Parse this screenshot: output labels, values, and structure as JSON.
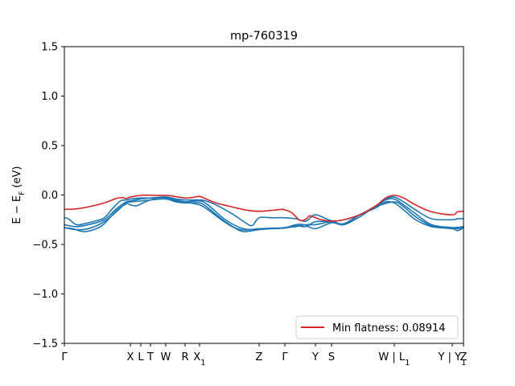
{
  "chart_data": {
    "type": "line",
    "title": "mp-760319",
    "ylabel": "E − E_F (eV)",
    "ylim": [
      -1.5,
      1.5
    ],
    "xlim": [
      0,
      1
    ],
    "yticks": [
      1.5,
      1.0,
      0.5,
      0.0,
      -0.5,
      -1.0,
      -1.5
    ],
    "ytick_labels": [
      "1.5",
      "1.0",
      "0.5",
      "0.0",
      "−0.5",
      "−1.0",
      "−1.5"
    ],
    "xticks": [
      {
        "x": 0.0,
        "label": "Γ"
      },
      {
        "x": 0.1653,
        "label": "X"
      },
      {
        "x": 0.1915,
        "label": "L"
      },
      {
        "x": 0.2157,
        "label": "T"
      },
      {
        "x": 0.254,
        "label": "W"
      },
      {
        "x": 0.3024,
        "label": "R"
      },
      {
        "x": 0.3387,
        "label": "X_1"
      },
      {
        "x": 0.4879,
        "label": "Z"
      },
      {
        "x": 0.5524,
        "label": "Γ"
      },
      {
        "x": 0.629,
        "label": "Y"
      },
      {
        "x": 0.6694,
        "label": "S"
      },
      {
        "x": 0.8266,
        "label": "W | L_1"
      },
      {
        "x": 0.9718,
        "label": "Y | Y_1"
      },
      {
        "x": 1.0,
        "label": "Z"
      }
    ],
    "legend": {
      "label": "Min flatness: 0.08914",
      "position": "lower right"
    },
    "series": [
      {
        "color": "#d62728",
        "points": [
          [
            0.0,
            -0.145
          ],
          [
            0.03,
            -0.14
          ],
          [
            0.06,
            -0.12
          ],
          [
            0.1,
            -0.08
          ],
          [
            0.13,
            -0.035
          ],
          [
            0.145,
            -0.025
          ],
          [
            0.155,
            -0.035
          ],
          [
            0.1653,
            -0.02
          ],
          [
            0.18,
            -0.01
          ],
          [
            0.1915,
            -0.003
          ],
          [
            0.2157,
            -0.002
          ],
          [
            0.235,
            -0.005
          ],
          [
            0.254,
            -0.003
          ],
          [
            0.27,
            -0.01
          ],
          [
            0.3024,
            -0.03
          ],
          [
            0.32,
            -0.025
          ],
          [
            0.3387,
            -0.015
          ],
          [
            0.355,
            -0.04
          ],
          [
            0.38,
            -0.08
          ],
          [
            0.42,
            -0.12
          ],
          [
            0.46,
            -0.155
          ],
          [
            0.4879,
            -0.165
          ],
          [
            0.52,
            -0.155
          ],
          [
            0.545,
            -0.145
          ],
          [
            0.5524,
            -0.15
          ],
          [
            0.57,
            -0.18
          ],
          [
            0.59,
            -0.255
          ],
          [
            0.605,
            -0.245
          ],
          [
            0.615,
            -0.21
          ],
          [
            0.629,
            -0.23
          ],
          [
            0.645,
            -0.25
          ],
          [
            0.6694,
            -0.265
          ],
          [
            0.7,
            -0.25
          ],
          [
            0.74,
            -0.2
          ],
          [
            0.78,
            -0.11
          ],
          [
            0.805,
            -0.03
          ],
          [
            0.8266,
            -0.003
          ],
          [
            0.85,
            -0.03
          ],
          [
            0.88,
            -0.1
          ],
          [
            0.92,
            -0.17
          ],
          [
            0.9718,
            -0.2
          ],
          [
            0.985,
            -0.17
          ],
          [
            1.0,
            -0.165
          ]
        ]
      },
      {
        "color": "#1f77b4",
        "points": [
          [
            0.0,
            -0.23
          ],
          [
            0.01,
            -0.24
          ],
          [
            0.03,
            -0.3
          ],
          [
            0.05,
            -0.29
          ],
          [
            0.08,
            -0.26
          ],
          [
            0.1,
            -0.23
          ],
          [
            0.12,
            -0.14
          ],
          [
            0.14,
            -0.06
          ],
          [
            0.155,
            -0.05
          ],
          [
            0.1653,
            -0.04
          ],
          [
            0.1915,
            -0.03
          ],
          [
            0.2157,
            -0.03
          ],
          [
            0.254,
            -0.02
          ],
          [
            0.28,
            -0.04
          ],
          [
            0.3024,
            -0.05
          ],
          [
            0.3387,
            -0.05
          ],
          [
            0.355,
            -0.06
          ],
          [
            0.38,
            -0.1
          ],
          [
            0.42,
            -0.19
          ],
          [
            0.45,
            -0.27
          ],
          [
            0.47,
            -0.31
          ],
          [
            0.4879,
            -0.23
          ],
          [
            0.52,
            -0.23
          ],
          [
            0.5524,
            -0.23
          ],
          [
            0.58,
            -0.24
          ],
          [
            0.605,
            -0.265
          ],
          [
            0.629,
            -0.2
          ],
          [
            0.6694,
            -0.26
          ],
          [
            0.7,
            -0.25
          ],
          [
            0.74,
            -0.2
          ],
          [
            0.78,
            -0.11
          ],
          [
            0.805,
            -0.04
          ],
          [
            0.8266,
            -0.02
          ],
          [
            0.85,
            -0.07
          ],
          [
            0.88,
            -0.15
          ],
          [
            0.92,
            -0.24
          ],
          [
            0.9718,
            -0.25
          ],
          [
            0.985,
            -0.24
          ],
          [
            1.0,
            -0.24
          ]
        ]
      },
      {
        "color": "#1f77b4",
        "points": [
          [
            0.0,
            -0.3
          ],
          [
            0.03,
            -0.32
          ],
          [
            0.06,
            -0.3
          ],
          [
            0.1,
            -0.25
          ],
          [
            0.13,
            -0.14
          ],
          [
            0.155,
            -0.07
          ],
          [
            0.1653,
            -0.06
          ],
          [
            0.1915,
            -0.04
          ],
          [
            0.2157,
            -0.03
          ],
          [
            0.254,
            -0.03
          ],
          [
            0.28,
            -0.06
          ],
          [
            0.3024,
            -0.07
          ],
          [
            0.3387,
            -0.06
          ],
          [
            0.36,
            -0.1
          ],
          [
            0.4,
            -0.24
          ],
          [
            0.44,
            -0.33
          ],
          [
            0.47,
            -0.35
          ],
          [
            0.4879,
            -0.34
          ],
          [
            0.52,
            -0.335
          ],
          [
            0.5524,
            -0.33
          ],
          [
            0.58,
            -0.3
          ],
          [
            0.6,
            -0.3
          ],
          [
            0.629,
            -0.34
          ],
          [
            0.6694,
            -0.28
          ],
          [
            0.7,
            -0.3
          ],
          [
            0.74,
            -0.2
          ],
          [
            0.78,
            -0.12
          ],
          [
            0.805,
            -0.05
          ],
          [
            0.8266,
            -0.04
          ],
          [
            0.85,
            -0.1
          ],
          [
            0.88,
            -0.19
          ],
          [
            0.92,
            -0.3
          ],
          [
            0.9718,
            -0.33
          ],
          [
            0.985,
            -0.34
          ],
          [
            1.0,
            -0.33
          ]
        ]
      },
      {
        "color": "#1f77b4",
        "points": [
          [
            0.0,
            -0.33
          ],
          [
            0.02,
            -0.34
          ],
          [
            0.05,
            -0.37
          ],
          [
            0.08,
            -0.34
          ],
          [
            0.1,
            -0.29
          ],
          [
            0.13,
            -0.16
          ],
          [
            0.155,
            -0.09
          ],
          [
            0.1653,
            -0.1
          ],
          [
            0.18,
            -0.11
          ],
          [
            0.1915,
            -0.09
          ],
          [
            0.2157,
            -0.05
          ],
          [
            0.254,
            -0.02
          ],
          [
            0.28,
            -0.05
          ],
          [
            0.3024,
            -0.07
          ],
          [
            0.3387,
            -0.1
          ],
          [
            0.36,
            -0.15
          ],
          [
            0.4,
            -0.27
          ],
          [
            0.43,
            -0.34
          ],
          [
            0.45,
            -0.37
          ],
          [
            0.4879,
            -0.35
          ],
          [
            0.52,
            -0.34
          ],
          [
            0.5524,
            -0.335
          ],
          [
            0.58,
            -0.31
          ],
          [
            0.605,
            -0.32
          ],
          [
            0.629,
            -0.27
          ],
          [
            0.6694,
            -0.27
          ],
          [
            0.7,
            -0.29
          ],
          [
            0.74,
            -0.2
          ],
          [
            0.78,
            -0.13
          ],
          [
            0.805,
            -0.07
          ],
          [
            0.8266,
            -0.08
          ],
          [
            0.85,
            -0.15
          ],
          [
            0.88,
            -0.25
          ],
          [
            0.92,
            -0.32
          ],
          [
            0.9718,
            -0.34
          ],
          [
            0.985,
            -0.36
          ],
          [
            1.0,
            -0.33
          ]
        ]
      },
      {
        "color": "#1f77b4",
        "points": [
          [
            0.0,
            -0.33
          ],
          [
            0.03,
            -0.35
          ],
          [
            0.06,
            -0.34
          ],
          [
            0.1,
            -0.27
          ],
          [
            0.13,
            -0.17
          ],
          [
            0.155,
            -0.08
          ],
          [
            0.1653,
            -0.07
          ],
          [
            0.1915,
            -0.06
          ],
          [
            0.2157,
            -0.05
          ],
          [
            0.254,
            -0.04
          ],
          [
            0.28,
            -0.07
          ],
          [
            0.3024,
            -0.08
          ],
          [
            0.3387,
            -0.08
          ],
          [
            0.36,
            -0.13
          ],
          [
            0.4,
            -0.26
          ],
          [
            0.44,
            -0.35
          ],
          [
            0.4879,
            -0.34
          ],
          [
            0.52,
            -0.34
          ],
          [
            0.5524,
            -0.33
          ],
          [
            0.58,
            -0.32
          ],
          [
            0.605,
            -0.3
          ],
          [
            0.629,
            -0.3
          ],
          [
            0.6694,
            -0.27
          ],
          [
            0.7,
            -0.3
          ],
          [
            0.74,
            -0.22
          ],
          [
            0.78,
            -0.12
          ],
          [
            0.8266,
            -0.07
          ],
          [
            0.85,
            -0.12
          ],
          [
            0.88,
            -0.22
          ],
          [
            0.92,
            -0.31
          ],
          [
            0.9718,
            -0.33
          ],
          [
            1.0,
            -0.32
          ]
        ]
      }
    ]
  }
}
